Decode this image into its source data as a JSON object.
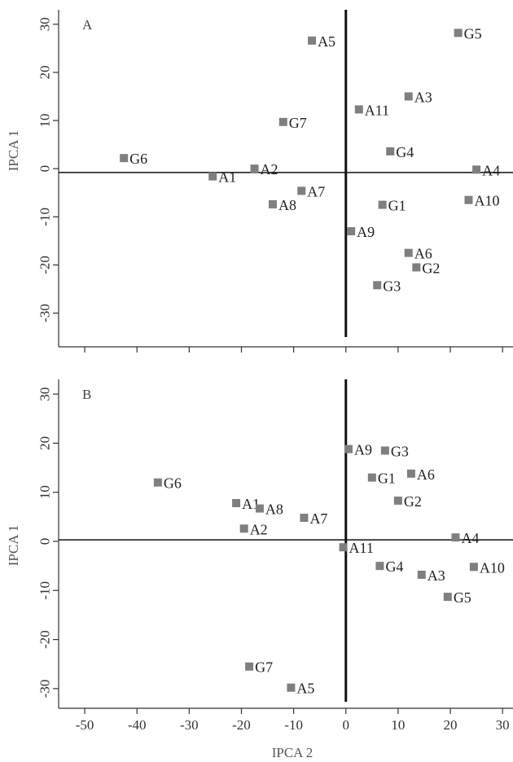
{
  "colors": {
    "marker": "#7f7f7f",
    "axis": "#333333",
    "reference": "#111111"
  },
  "chart_data": [
    {
      "type": "scatter",
      "panel_label": "A",
      "title": "",
      "xlabel": "",
      "ylabel": "IPCA 1",
      "xlim": [
        -55,
        32
      ],
      "ylim": [
        -37,
        33
      ],
      "xticks": [
        -50,
        -40,
        -30,
        -20,
        -10,
        0,
        10,
        20,
        30
      ],
      "yticks": [
        -30,
        -20,
        -10,
        0,
        10,
        20,
        30
      ],
      "ytick_labels": [
        "-30",
        "-20",
        "-10",
        "0",
        "10",
        "20",
        "30"
      ],
      "xtick_labels": [],
      "grid": false,
      "reference_lines": {
        "x": 0,
        "y": -0.8
      },
      "points": [
        {
          "label": "G6",
          "x": -42.5,
          "y": 2.2
        },
        {
          "label": "A1",
          "x": -25.5,
          "y": -1.6
        },
        {
          "label": "A2",
          "x": -17.5,
          "y": 0.0
        },
        {
          "label": "G7",
          "x": -12.0,
          "y": 9.7
        },
        {
          "label": "A5",
          "x": -6.5,
          "y": 26.6
        },
        {
          "label": "A7",
          "x": -8.5,
          "y": -4.6
        },
        {
          "label": "A8",
          "x": -14.0,
          "y": -7.4
        },
        {
          "label": "A9",
          "x": 1.0,
          "y": -13.0
        },
        {
          "label": "A11",
          "x": 2.5,
          "y": 12.3
        },
        {
          "label": "G1",
          "x": 7.0,
          "y": -7.5
        },
        {
          "label": "G4",
          "x": 8.5,
          "y": 3.6
        },
        {
          "label": "A3",
          "x": 12.0,
          "y": 15.0
        },
        {
          "label": "A6",
          "x": 12.0,
          "y": -17.5
        },
        {
          "label": "G2",
          "x": 13.5,
          "y": -20.5
        },
        {
          "label": "G3",
          "x": 6.0,
          "y": -24.2
        },
        {
          "label": "G5",
          "x": 21.5,
          "y": 28.2
        },
        {
          "label": "A4",
          "x": 25.0,
          "y": -0.2
        },
        {
          "label": "A10",
          "x": 23.5,
          "y": -6.5
        }
      ]
    },
    {
      "type": "scatter",
      "panel_label": "B",
      "title": "",
      "xlabel": "IPCA 2",
      "ylabel": "IPCA 1",
      "xlim": [
        -55,
        32
      ],
      "ylim": [
        -34,
        33
      ],
      "xticks": [
        -50,
        -40,
        -30,
        -20,
        -10,
        0,
        10,
        20,
        30
      ],
      "xtick_labels": [
        "-50",
        "-40",
        "-30",
        "-20",
        "-10",
        "0",
        "10",
        "20",
        "30"
      ],
      "yticks": [
        -30,
        -20,
        -10,
        0,
        10,
        20,
        30
      ],
      "ytick_labels": [
        "-30",
        "-20",
        "-10",
        "0",
        "10",
        "20",
        "30"
      ],
      "grid": false,
      "reference_lines": {
        "x": 0,
        "y": 0.3
      },
      "points": [
        {
          "label": "G6",
          "x": -36.0,
          "y": 12.0
        },
        {
          "label": "A1",
          "x": -21.0,
          "y": 7.8
        },
        {
          "label": "A8",
          "x": -16.5,
          "y": 6.7
        },
        {
          "label": "A2",
          "x": -19.5,
          "y": 2.6
        },
        {
          "label": "A7",
          "x": -8.0,
          "y": 4.8
        },
        {
          "label": "A11",
          "x": -0.5,
          "y": -1.2
        },
        {
          "label": "A9",
          "x": 0.5,
          "y": 18.8
        },
        {
          "label": "G3",
          "x": 7.5,
          "y": 18.5
        },
        {
          "label": "G1",
          "x": 5.0,
          "y": 13.0
        },
        {
          "label": "A6",
          "x": 12.5,
          "y": 13.8
        },
        {
          "label": "G2",
          "x": 10.0,
          "y": 8.3
        },
        {
          "label": "A4",
          "x": 21.0,
          "y": 0.8
        },
        {
          "label": "G4",
          "x": 6.5,
          "y": -5.0
        },
        {
          "label": "A3",
          "x": 14.5,
          "y": -6.8
        },
        {
          "label": "A10",
          "x": 24.5,
          "y": -5.2
        },
        {
          "label": "G5",
          "x": 19.5,
          "y": -11.3
        },
        {
          "label": "G7",
          "x": -18.5,
          "y": -25.5
        },
        {
          "label": "A5",
          "x": -10.5,
          "y": -29.8
        }
      ]
    }
  ]
}
